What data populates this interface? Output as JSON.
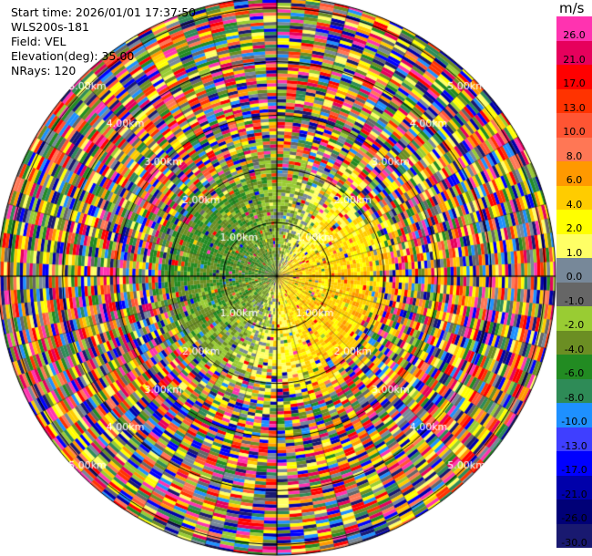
{
  "header": {
    "start_time": "Start time: 2026/01/01 17:37:50",
    "instrument": "WLS200s-181",
    "field": "Field: VEL",
    "elevation": "Elevation(deg): 35.00",
    "nrays": "NRays: 120"
  },
  "chart_data": {
    "type": "heatmap",
    "projection": "polar PPI",
    "field": "VEL",
    "units": "m/s",
    "nrays": 120,
    "range_rings_km": [
      1.0,
      2.0,
      3.0,
      4.0,
      5.0
    ],
    "range_ring_labels": [
      "1.00km",
      "2.00km",
      "3.00km",
      "4.00km",
      "5.00km"
    ],
    "max_range_km": 5.2,
    "grid": true,
    "colorbar": {
      "title": "m/s",
      "ticks": [
        "26.0",
        "21.0",
        "17.0",
        "13.0",
        "10.0",
        "8.0",
        "6.0",
        "4.0",
        "2.0",
        "1.0",
        "0.0",
        "-1.0",
        "-2.0",
        "-4.0",
        "-6.0",
        "-8.0",
        "-10.0",
        "-13.0",
        "-17.0",
        "-21.0",
        "-26.0",
        "-30.0"
      ],
      "colors": [
        "#ff33b0",
        "#e6005c",
        "#ff0000",
        "#ff3300",
        "#ff5533",
        "#ff7755",
        "#ff9900",
        "#ffcc00",
        "#ffff00",
        "#ffff66",
        "#778899",
        "#666666",
        "#99cc33",
        "#6b8e23",
        "#228b22",
        "#2e8b57",
        "#1e90ff",
        "#3f3fff",
        "#0000ff",
        "#0000aa",
        "#000077",
        "#191970"
      ]
    }
  }
}
